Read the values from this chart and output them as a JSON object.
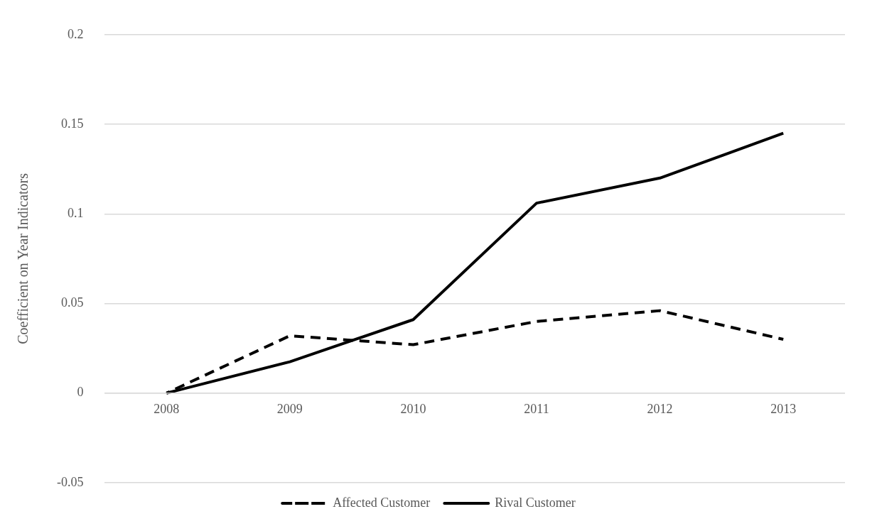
{
  "chart_data": {
    "type": "line",
    "ylabel": "Coefficient on Year Indicators",
    "categories": [
      "2008",
      "2009",
      "2010",
      "2011",
      "2012",
      "2013"
    ],
    "series": [
      {
        "name": "Affected Customer",
        "color": "#000000",
        "line_style": "dashed",
        "values": [
          0,
          0.032,
          0.027,
          0.04,
          0.046,
          0.03
        ]
      },
      {
        "name": "Rival Customer",
        "color": "#000000",
        "line_style": "solid",
        "values": [
          0,
          0.0175,
          0.041,
          0.106,
          0.12,
          0.145
        ]
      }
    ],
    "ylim": [
      -0.05,
      0.2
    ],
    "yticks": [
      -0.05,
      0,
      0.05,
      0.1,
      0.15,
      0.2
    ],
    "grid": "y",
    "legend": "bottom",
    "marker": "none"
  }
}
